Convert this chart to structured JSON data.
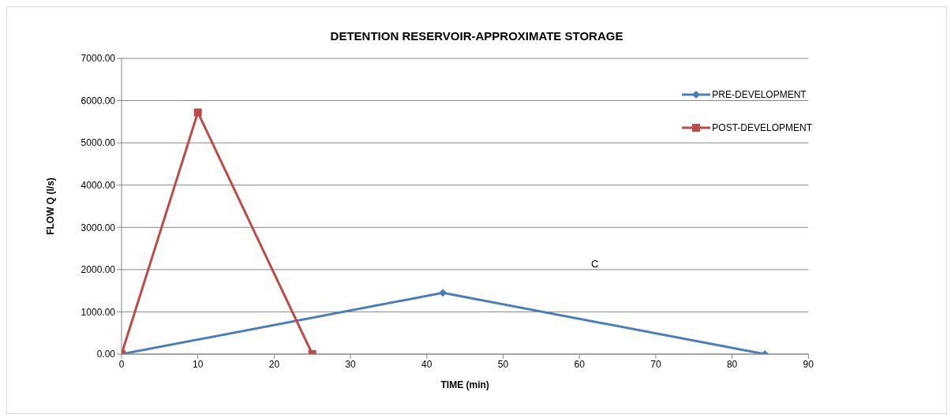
{
  "chart_data": {
    "type": "line",
    "title": "DETENTION RESERVOIR-APPROXIMATE STORAGE",
    "xlabel": "TIME (min)",
    "ylabel": "FLOW Q (l/s)",
    "series": [
      {
        "name": "PRE-DEVELOPMENT",
        "color": "#4a7ebb",
        "marker": "diamond",
        "x": [
          0,
          42.1,
          84.3
        ],
        "values": [
          0,
          1450,
          0
        ]
      },
      {
        "name": "POST-DEVELOPMENT",
        "color": "#be4b48",
        "marker": "square",
        "x": [
          0,
          10,
          25
        ],
        "values": [
          0,
          5720,
          0
        ]
      }
    ],
    "xlim": [
      0,
      90
    ],
    "xticks": [
      0,
      10,
      20,
      30,
      40,
      50,
      60,
      70,
      80,
      90
    ],
    "ylim": [
      0,
      7000
    ],
    "yticks": [
      {
        "value": 0,
        "label": "0.00"
      },
      {
        "value": 1000,
        "label": "1000.00"
      },
      {
        "value": 2000,
        "label": "2000.00"
      },
      {
        "value": 3000,
        "label": "3000.00"
      },
      {
        "value": 4000,
        "label": "4000.00"
      },
      {
        "value": 5000,
        "label": "5000.00"
      },
      {
        "value": 6000,
        "label": "6000.00"
      },
      {
        "value": 7000,
        "label": "7000.00"
      }
    ],
    "grid": "y",
    "legend": "top right",
    "line_style": "solid",
    "annotations": [
      "C"
    ]
  }
}
